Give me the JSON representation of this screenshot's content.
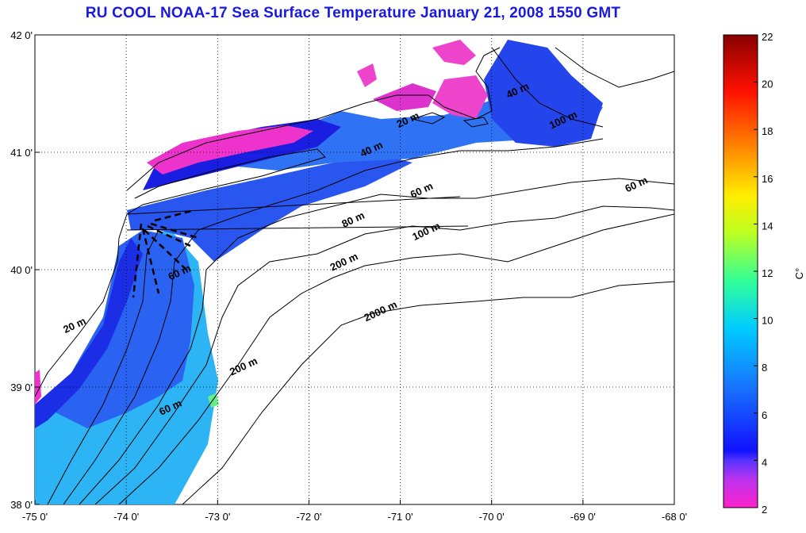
{
  "title": "RU COOL  NOAA-17 Sea Surface Temperature January 21, 2008 1550 GMT",
  "map": {
    "lon_range": [
      -75,
      -68
    ],
    "lat_range": [
      38,
      42
    ],
    "lon_ticks": [
      "-75 0'",
      "-74 0'",
      "-73 0'",
      "-72 0'",
      "-71 0'",
      "-70 0'",
      "-69 0'",
      "-68 0'"
    ],
    "lat_ticks": [
      "38 0'",
      "39 0'",
      "40 0'",
      "41 0'",
      "42 0'"
    ],
    "grid": true,
    "grid_style": "dotted"
  },
  "contour_labels": [
    {
      "text": "20 m",
      "lon": -74.55,
      "lat": 39.5
    },
    {
      "text": "60 m",
      "lon": -73.4,
      "lat": 39.95
    },
    {
      "text": "200 m",
      "lon": -72.7,
      "lat": 39.15
    },
    {
      "text": "60 m",
      "lon": -73.5,
      "lat": 38.8
    },
    {
      "text": "80 m",
      "lon": -71.5,
      "lat": 40.4
    },
    {
      "text": "100 m",
      "lon": -70.7,
      "lat": 40.3
    },
    {
      "text": "200 m",
      "lon": -71.6,
      "lat": 40.04
    },
    {
      "text": "2000 m",
      "lon": -71.2,
      "lat": 39.62
    },
    {
      "text": "60 m",
      "lon": -70.75,
      "lat": 40.65
    },
    {
      "text": "40 m",
      "lon": -71.3,
      "lat": 41.0
    },
    {
      "text": "20 m",
      "lon": -70.9,
      "lat": 41.25
    },
    {
      "text": "40 m",
      "lon": -69.7,
      "lat": 41.5
    },
    {
      "text": "100 m",
      "lon": -69.2,
      "lat": 41.25
    },
    {
      "text": "60 m",
      "lon": -68.4,
      "lat": 40.7
    }
  ],
  "colorbar": {
    "min": 2,
    "max": 22,
    "ticks": [
      "22",
      "20",
      "18",
      "16",
      "14",
      "12",
      "10",
      "8",
      "6",
      "4",
      "2"
    ],
    "unit_label": "C°",
    "colormap": [
      "#ff22cc",
      "#aa33ff",
      "#1111ff",
      "#1870ff",
      "#00ccff",
      "#33ff99",
      "#bbff22",
      "#ffee00",
      "#ff8800",
      "#ff1100",
      "#880000"
    ]
  }
}
